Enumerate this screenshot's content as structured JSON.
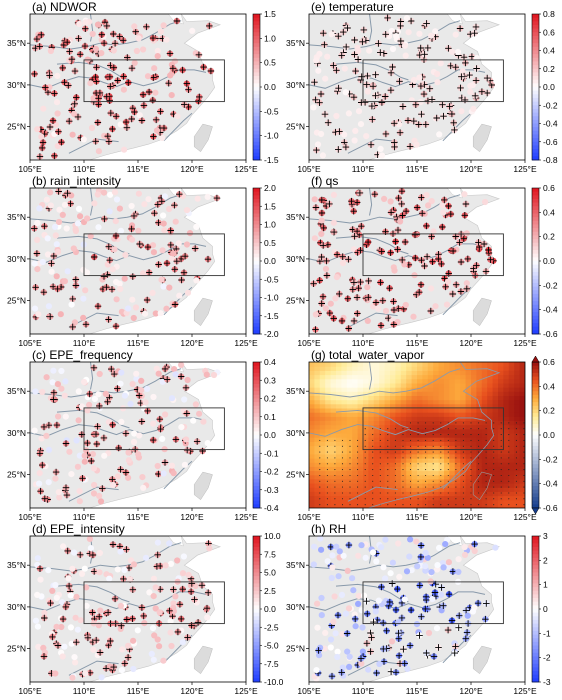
{
  "colors": {
    "neg": "#1e3cff",
    "pos": "#e0141e",
    "land": "#e9e9e9",
    "river": "#8899aa",
    "vapor_low": "#ffffff",
    "vapor_high": "#7a0a0a"
  },
  "chart_data": [
    {
      "type": "scatter",
      "label": "(a) NDWOR",
      "x_ticks": [
        "105°E",
        "110°E",
        "115°E",
        "120°E",
        "125°E"
      ],
      "y_ticks": [
        "25°N",
        "30°N",
        "35°N"
      ],
      "xlim": [
        105,
        125
      ],
      "ylim": [
        21,
        38.5
      ],
      "box": {
        "lon": [
          110,
          123
        ],
        "lat": [
          28,
          33
        ]
      },
      "cbar": {
        "ticks": [
          "1.5",
          "1.0",
          "0.5",
          "0.0",
          "-0.5",
          "-1.0",
          "-1.5"
        ],
        "range": [
          -1.5,
          1.5
        ]
      },
      "station_seed": 11,
      "bias": 0.55,
      "spread": 0.5,
      "significance": "plus markers mark significant stations (dense in south)"
    },
    {
      "type": "scatter",
      "label": "(b) rain_intensity",
      "x_ticks": [
        "105°E",
        "110°E",
        "115°E",
        "120°E",
        "125°E"
      ],
      "y_ticks": [
        "25°N",
        "30°N",
        "35°N"
      ],
      "xlim": [
        105,
        125
      ],
      "ylim": [
        21,
        38.5
      ],
      "box": {
        "lon": [
          110,
          123
        ],
        "lat": [
          28,
          33
        ]
      },
      "cbar": {
        "ticks": [
          "2.0",
          "1.5",
          "1.0",
          "0.5",
          "0.0",
          "-0.5",
          "-1.0",
          "-1.5",
          "-2.0"
        ],
        "range": [
          -2,
          2
        ]
      },
      "station_seed": 23,
      "bias": 0.45,
      "spread": 0.7
    },
    {
      "type": "scatter",
      "label": "(c) EPE_frequency",
      "x_ticks": [
        "105°E",
        "110°E",
        "115°E",
        "120°E",
        "125°E"
      ],
      "y_ticks": [
        "25°N",
        "30°N",
        "35°N"
      ],
      "xlim": [
        105,
        125
      ],
      "ylim": [
        21,
        38.5
      ],
      "box": {
        "lon": [
          110,
          123
        ],
        "lat": [
          28,
          33
        ]
      },
      "cbar": {
        "ticks": [
          "0.4",
          "0.3",
          "0.2",
          "0.1",
          "0.0",
          "-0.1",
          "-0.2",
          "-0.3",
          "-0.4"
        ],
        "range": [
          -0.4,
          0.4
        ]
      },
      "station_seed": 37,
      "bias": 0.08,
      "spread": 0.14
    },
    {
      "type": "scatter",
      "label": "(d) EPE_intensity",
      "x_ticks": [
        "105°E",
        "110°E",
        "115°E",
        "120°E",
        "125°E"
      ],
      "y_ticks": [
        "25°N",
        "30°N",
        "35°N"
      ],
      "xlim": [
        105,
        125
      ],
      "ylim": [
        21,
        38.5
      ],
      "box": {
        "lon": [
          110,
          123
        ],
        "lat": [
          28,
          33
        ]
      },
      "cbar": {
        "ticks": [
          "10.0",
          "7.5",
          "5.0",
          "2.5",
          "0.0",
          "-2.5",
          "-5.0",
          "-7.5",
          "-10.0"
        ],
        "range": [
          -10,
          10
        ]
      },
      "station_seed": 41,
      "bias": 1.8,
      "spread": 3.2
    },
    {
      "type": "scatter",
      "label": "(e) temperature",
      "x_ticks": [
        "105°E",
        "110°E",
        "115°E",
        "120°E",
        "125°E"
      ],
      "y_ticks": [
        "25°N",
        "30°N",
        "35°N"
      ],
      "xlim": [
        105,
        125
      ],
      "ylim": [
        21,
        38.5
      ],
      "box": {
        "lon": [
          110,
          123
        ],
        "lat": [
          28,
          33
        ]
      },
      "cbar": {
        "ticks": [
          "0.8",
          "0.6",
          "0.4",
          "0.2",
          "0.0",
          "-0.2",
          "-0.4",
          "-0.6",
          "-0.8"
        ],
        "range": [
          -0.8,
          0.8
        ]
      },
      "station_seed": 53,
      "bias": 0.12,
      "spread": 0.1
    },
    {
      "type": "scatter",
      "label": "(f) qs",
      "x_ticks": [
        "105°E",
        "110°E",
        "115°E",
        "120°E",
        "125°E"
      ],
      "y_ticks": [
        "25°N",
        "30°N",
        "35°N"
      ],
      "xlim": [
        105,
        125
      ],
      "ylim": [
        21,
        38.5
      ],
      "box": {
        "lon": [
          110,
          123
        ],
        "lat": [
          28,
          33
        ]
      },
      "cbar": {
        "ticks": [
          "0.6",
          "0.4",
          "0.2",
          "0.0",
          "-0.2",
          "-0.4",
          "-0.6"
        ],
        "range": [
          -0.6,
          0.6
        ]
      },
      "station_seed": 67,
      "bias": 0.25,
      "spread": 0.18
    },
    {
      "type": "heatmap",
      "label": "(g) total_water_vapor",
      "x_ticks": [
        "105°E",
        "110°E",
        "115°E",
        "120°E",
        "125°E"
      ],
      "y_ticks": [
        "25°N",
        "30°N",
        "35°N"
      ],
      "xlim": [
        105,
        125
      ],
      "ylim": [
        21,
        38.5
      ],
      "box": {
        "lon": [
          110,
          123
        ],
        "lat": [
          28,
          33
        ]
      },
      "cbar": {
        "ticks": [
          "0.6",
          "0.4",
          "0.2",
          "0.0",
          "-0.2",
          "-0.4",
          "-0.6"
        ],
        "range": [
          -0.6,
          0.6
        ]
      },
      "field_note": "smooth positive field, strongest along 28-32N and south-east; stippling marks significance",
      "grid_lon": [
        105,
        107,
        109,
        111,
        113,
        115,
        117,
        119,
        121,
        123,
        125
      ],
      "grid_lat": [
        38,
        36,
        34,
        32,
        30,
        28,
        26,
        24,
        22
      ],
      "grid_values": [
        [
          0.25,
          0.2,
          0.1,
          0.05,
          0.1,
          0.2,
          0.3,
          0.35,
          0.4,
          0.45,
          0.55
        ],
        [
          0.2,
          0.05,
          0.0,
          0.05,
          0.15,
          0.3,
          0.35,
          0.3,
          0.4,
          0.5,
          0.55
        ],
        [
          0.3,
          0.15,
          0.1,
          0.2,
          0.3,
          0.4,
          0.35,
          0.3,
          0.45,
          0.55,
          0.6
        ],
        [
          0.4,
          0.35,
          0.3,
          0.35,
          0.45,
          0.5,
          0.5,
          0.45,
          0.5,
          0.55,
          0.6
        ],
        [
          0.35,
          0.3,
          0.3,
          0.4,
          0.5,
          0.55,
          0.55,
          0.55,
          0.55,
          0.5,
          0.55
        ],
        [
          0.3,
          0.2,
          0.3,
          0.45,
          0.5,
          0.4,
          0.35,
          0.5,
          0.55,
          0.5,
          0.55
        ],
        [
          0.35,
          0.3,
          0.35,
          0.45,
          0.4,
          0.2,
          0.15,
          0.4,
          0.55,
          0.55,
          0.55
        ],
        [
          0.45,
          0.4,
          0.4,
          0.45,
          0.4,
          0.3,
          0.35,
          0.45,
          0.55,
          0.55,
          0.5
        ],
        [
          0.5,
          0.45,
          0.45,
          0.45,
          0.45,
          0.45,
          0.5,
          0.5,
          0.5,
          0.45,
          0.45
        ]
      ]
    },
    {
      "type": "scatter",
      "label": "(h) RH",
      "x_ticks": [
        "105°E",
        "110°E",
        "115°E",
        "120°E",
        "125°E"
      ],
      "y_ticks": [
        "25°N",
        "30°N",
        "35°N"
      ],
      "xlim": [
        105,
        125
      ],
      "ylim": [
        21,
        38.5
      ],
      "box": {
        "lon": [
          110,
          123
        ],
        "lat": [
          28,
          33
        ]
      },
      "cbar": {
        "ticks": [
          "3",
          "2",
          "1",
          "0",
          "-1",
          "-2",
          "-3"
        ],
        "range": [
          -3,
          3
        ]
      },
      "station_seed": 79,
      "bias": -0.6,
      "spread": 1.4
    }
  ]
}
